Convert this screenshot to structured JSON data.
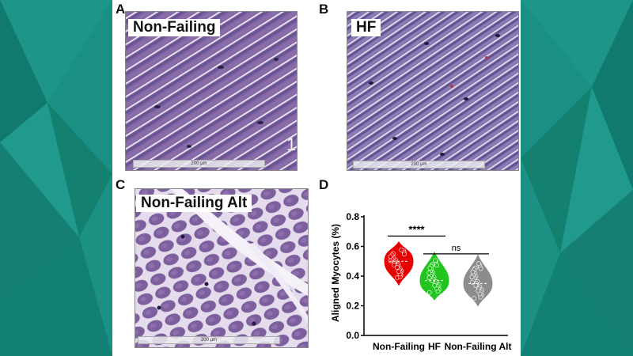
{
  "panels": {
    "a": {
      "letter": "A",
      "label": "Non-Failing",
      "scale_bar": "200 µm",
      "corner_mark": "1"
    },
    "b": {
      "letter": "B",
      "label": "HF",
      "scale_bar": "200 µm"
    },
    "c": {
      "letter": "C",
      "label": "Non-Failing Alt",
      "scale_bar": "200 µm"
    },
    "d": {
      "letter": "D"
    }
  },
  "colors": {
    "background": "#1a8c80",
    "tissue": "#7a62a0",
    "non_failing": "#e60000",
    "hf": "#22c41e",
    "non_failing_alt": "#8c8c8c"
  },
  "chart_data": {
    "type": "violin",
    "ylabel": "Aligned Myocytes (%)",
    "ylim": [
      0.0,
      0.8
    ],
    "yticks": [
      0.0,
      0.2,
      0.4,
      0.6,
      0.8
    ],
    "categories": [
      "Non-Failing",
      "HF",
      "Non-Failing Alt"
    ],
    "series": [
      {
        "category": "Non-Failing",
        "median": 0.5,
        "min": 0.34,
        "max": 0.63
      },
      {
        "category": "HF",
        "median": 0.37,
        "min": 0.24,
        "max": 0.56
      },
      {
        "category": "Non-Failing Alt",
        "median": 0.35,
        "min": 0.2,
        "max": 0.54
      }
    ],
    "annotations": [
      {
        "from": "Non-Failing",
        "to": "HF",
        "label": "****",
        "y": 0.67
      },
      {
        "from": "HF",
        "to": "Non-Failing Alt",
        "label": "ns",
        "y": 0.55
      }
    ]
  }
}
